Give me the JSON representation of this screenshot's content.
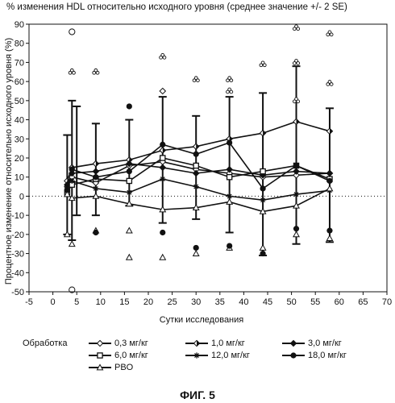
{
  "chart_data": {
    "type": "line",
    "title": "% изменения HDL относительно исходного уровня (среднее значение +/- 2 SE)",
    "xlabel": "Сутки исследования",
    "ylabel": "Процентное изменение относительно исходного уровня (%)",
    "xlim": [
      -5,
      70
    ],
    "ylim": [
      -50,
      90
    ],
    "xticks": [
      "-5",
      "0",
      "5",
      "10",
      "15",
      "20",
      "25",
      "30",
      "35",
      "40",
      "45",
      "50",
      "55",
      "60",
      "65",
      "70"
    ],
    "yticks": [
      "-50",
      "-40",
      "-30",
      "-20",
      "-10",
      "0",
      "10",
      "20",
      "30",
      "40",
      "50",
      "60",
      "70",
      "80",
      "90"
    ],
    "reference_line": 0,
    "legend_title": "Обработка",
    "series": [
      {
        "name": "0,3 мг/кг",
        "marker": "open-diamond",
        "x": [
          3,
          4,
          9,
          16,
          23,
          30,
          37,
          44,
          51,
          58
        ],
        "y": [
          5,
          10,
          7,
          16,
          18,
          14,
          12,
          10,
          11,
          12
        ]
      },
      {
        "name": "1,0 мг/кг",
        "marker": "half-diamond",
        "x": [
          3,
          4,
          9,
          16,
          23,
          30,
          37,
          44,
          51,
          58
        ],
        "y": [
          8,
          15,
          17,
          19,
          24,
          26,
          30,
          33,
          39,
          34
        ]
      },
      {
        "name": "3,0 мг/кг",
        "marker": "filled-diamond",
        "x": [
          3,
          4,
          9,
          16,
          23,
          30,
          37,
          44,
          51,
          58
        ],
        "y": [
          6,
          12,
          13,
          17,
          15,
          12,
          14,
          11,
          13,
          12
        ]
      },
      {
        "name": "6,0 мг/кг",
        "marker": "square",
        "x": [
          3,
          4,
          9,
          16,
          23,
          30,
          37,
          44,
          51,
          58
        ],
        "y": [
          2,
          6,
          9,
          8,
          20,
          16,
          10,
          13,
          16,
          9
        ]
      },
      {
        "name": "12,0 мг/кг",
        "marker": "star",
        "x": [
          3,
          4,
          9,
          16,
          23,
          30,
          37,
          44,
          51,
          58
        ],
        "y": [
          4,
          8,
          4,
          2,
          9,
          5,
          0,
          -2,
          1,
          3
        ]
      },
      {
        "name": "18,0 мг/кг",
        "marker": "filled-circle",
        "x": [
          3,
          4,
          9,
          16,
          23,
          30,
          37,
          44,
          51,
          58
        ],
        "y": [
          3,
          14,
          10,
          13,
          27,
          22,
          28,
          4,
          16,
          8
        ]
      },
      {
        "name": "PBO",
        "marker": "triangle",
        "x": [
          3,
          4,
          9,
          16,
          23,
          30,
          37,
          44,
          51,
          58
        ],
        "y": [
          1,
          -1,
          0,
          -4,
          -7,
          -6,
          -3,
          -8,
          -5,
          4
        ]
      }
    ],
    "error_bars": [
      {
        "x": 3,
        "low": -20,
        "high": 32
      },
      {
        "x": 4,
        "low": -23,
        "high": 50
      },
      {
        "x": 5,
        "low": -10,
        "high": 47
      },
      {
        "x": 9,
        "low": -10,
        "high": 38
      },
      {
        "x": 16,
        "low": -5,
        "high": 40
      },
      {
        "x": 23,
        "low": -14,
        "high": 52
      },
      {
        "x": 30,
        "low": -12,
        "high": 42
      },
      {
        "x": 37,
        "low": -19,
        "high": 52
      },
      {
        "x": 44,
        "low": -31,
        "high": 54
      },
      {
        "x": 51,
        "low": -25,
        "high": 68
      },
      {
        "x": 58,
        "low": -24,
        "high": 46
      }
    ],
    "individual_points": [
      {
        "x": 4,
        "y": 86,
        "marker": "open-circle"
      },
      {
        "x": 4,
        "y": 65,
        "marker": "club"
      },
      {
        "x": 9,
        "y": 65,
        "marker": "club"
      },
      {
        "x": 23,
        "y": 73,
        "marker": "club"
      },
      {
        "x": 23,
        "y": 55,
        "marker": "open-diamond"
      },
      {
        "x": 30,
        "y": 61,
        "marker": "club"
      },
      {
        "x": 37,
        "y": 61,
        "marker": "club"
      },
      {
        "x": 37,
        "y": 55,
        "marker": "club"
      },
      {
        "x": 44,
        "y": 69,
        "marker": "club"
      },
      {
        "x": 51,
        "y": 88,
        "marker": "club"
      },
      {
        "x": 51,
        "y": 70,
        "marker": "club"
      },
      {
        "x": 51,
        "y": 50,
        "marker": "club"
      },
      {
        "x": 58,
        "y": 85,
        "marker": "club"
      },
      {
        "x": 58,
        "y": 59,
        "marker": "club"
      },
      {
        "x": 4,
        "y": -49,
        "marker": "open-circle"
      },
      {
        "x": 3,
        "y": -20,
        "marker": "triangle"
      },
      {
        "x": 4,
        "y": -25,
        "marker": "triangle"
      },
      {
        "x": 9,
        "y": -18,
        "marker": "triangle"
      },
      {
        "x": 16,
        "y": -18,
        "marker": "triangle"
      },
      {
        "x": 16,
        "y": -32,
        "marker": "triangle"
      },
      {
        "x": 23,
        "y": -32,
        "marker": "triangle"
      },
      {
        "x": 30,
        "y": -30,
        "marker": "triangle"
      },
      {
        "x": 37,
        "y": -27,
        "marker": "triangle"
      },
      {
        "x": 44,
        "y": -27,
        "marker": "triangle"
      },
      {
        "x": 51,
        "y": -20,
        "marker": "triangle"
      },
      {
        "x": 58,
        "y": -22,
        "marker": "triangle"
      },
      {
        "x": 16,
        "y": 47,
        "marker": "filled-circle"
      },
      {
        "x": 23,
        "y": -19,
        "marker": "filled-circle"
      },
      {
        "x": 30,
        "y": -27,
        "marker": "filled-circle"
      },
      {
        "x": 37,
        "y": -26,
        "marker": "filled-circle"
      },
      {
        "x": 44,
        "y": -30,
        "marker": "filled-circle"
      },
      {
        "x": 51,
        "y": -17,
        "marker": "filled-circle"
      },
      {
        "x": 58,
        "y": -18,
        "marker": "filled-circle"
      },
      {
        "x": 9,
        "y": -19,
        "marker": "filled-circle"
      }
    ]
  },
  "figure_caption": "ФИГ. 5"
}
